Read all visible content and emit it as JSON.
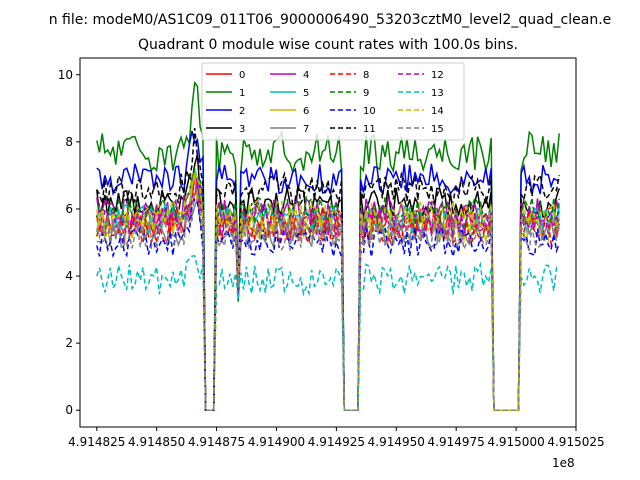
{
  "suptitle": "n file: modeM0/AS1C09_011T06_9000006490_53203cztM0_level2_quad_clean.e",
  "chart_data": {
    "type": "line",
    "title": "Quadrant 0 module wise count rates with 100.0s bins.",
    "xlabel": "",
    "ylabel": "",
    "offset_text": "1e8",
    "xlim": [
      4.914818,
      4.915025
    ],
    "ylim": [
      -0.5,
      10.5
    ],
    "x_ticks": [
      4.914825,
      4.91485,
      4.914875,
      4.9149,
      4.914925,
      4.91495,
      4.914975,
      4.915,
      4.915025
    ],
    "x_tick_labels": [
      "4.914825",
      "4.914850",
      "4.914875",
      "4.914900",
      "4.914925",
      "4.914950",
      "4.914975",
      "4.915000",
      "4.915025"
    ],
    "y_ticks": [
      0,
      2,
      4,
      6,
      8,
      10
    ],
    "y_tick_labels": [
      "0",
      "2",
      "4",
      "6",
      "8",
      "10"
    ],
    "x_range": [
      4.914825,
      4.915018
    ],
    "gaps": [
      {
        "start": 4.91487,
        "end": 4.914874,
        "floor": 0.0
      },
      {
        "start": 4.914884,
        "end": 4.914885,
        "floor": 3.2
      },
      {
        "start": 4.914928,
        "end": 4.914935,
        "floor": 0.0
      },
      {
        "start": 4.91499,
        "end": 4.915002,
        "floor": 0.0
      }
    ],
    "legend_position": "upper center, 4 columns",
    "series": [
      {
        "name": "0",
        "color": "#ff0000",
        "dash": "solid",
        "level": 5.6
      },
      {
        "name": "1",
        "color": "#008000",
        "dash": "solid",
        "level": 7.7
      },
      {
        "name": "2",
        "color": "#0000ff",
        "dash": "solid",
        "level": 6.9
      },
      {
        "name": "3",
        "color": "#000000",
        "dash": "solid",
        "level": 6.2
      },
      {
        "name": "4",
        "color": "#bf00bf",
        "dash": "solid",
        "level": 5.9
      },
      {
        "name": "5",
        "color": "#00bfbf",
        "dash": "solid",
        "level": 5.7
      },
      {
        "name": "6",
        "color": "#bfbf00",
        "dash": "solid",
        "level": 5.5
      },
      {
        "name": "7",
        "color": "#808080",
        "dash": "solid",
        "level": 5.3
      },
      {
        "name": "8",
        "color": "#ff0000",
        "dash": "dashed",
        "level": 5.4
      },
      {
        "name": "9",
        "color": "#008000",
        "dash": "dashed",
        "level": 5.9
      },
      {
        "name": "10",
        "color": "#0000ff",
        "dash": "dashed",
        "level": 5.0
      },
      {
        "name": "11",
        "color": "#000000",
        "dash": "dashed",
        "level": 6.6
      },
      {
        "name": "12",
        "color": "#bf00bf",
        "dash": "dashed",
        "level": 5.6
      },
      {
        "name": "13",
        "color": "#00bfbf",
        "dash": "dashed",
        "level": 3.9
      },
      {
        "name": "14",
        "color": "#bfbf00",
        "dash": "dashed",
        "level": 5.8
      },
      {
        "name": "15",
        "color": "#808080",
        "dash": "dashed",
        "level": 5.2
      }
    ]
  }
}
